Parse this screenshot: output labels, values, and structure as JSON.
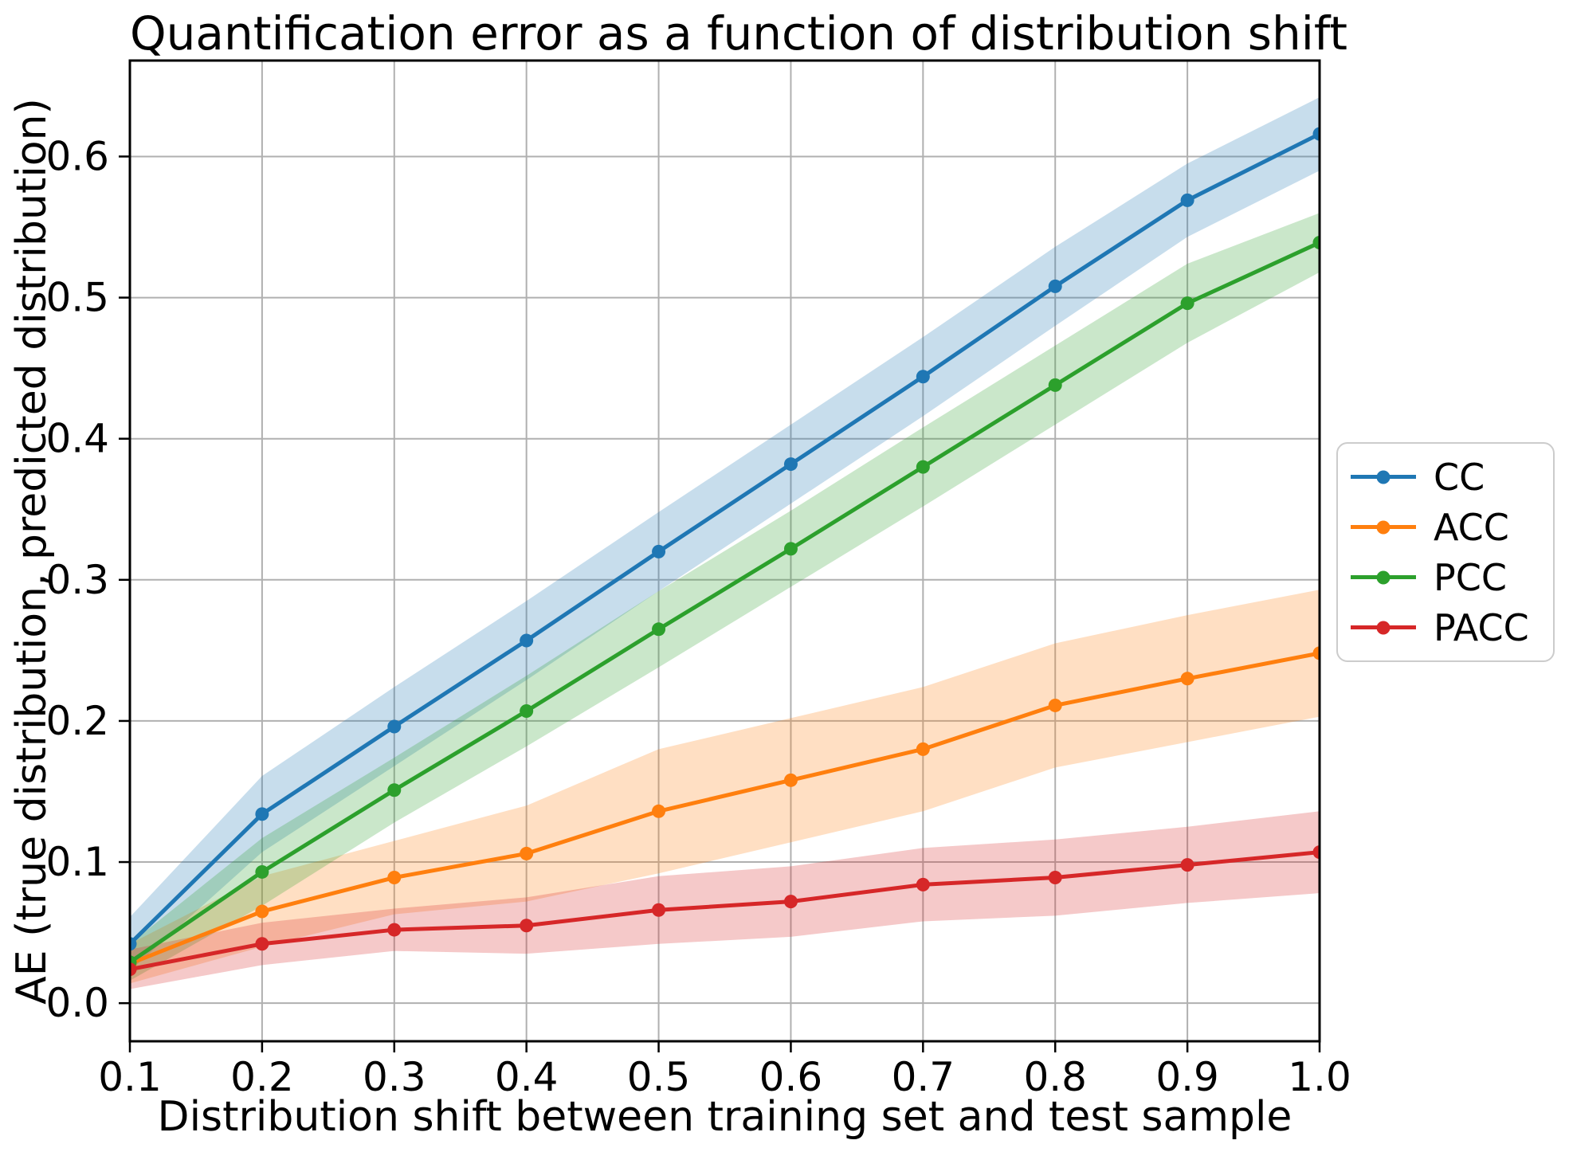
{
  "chart_data": {
    "type": "line",
    "title": "Quantification error as a function of distribution shift",
    "xlabel": "Distribution shift between training set and test sample",
    "ylabel": "AE (true distribution, predicted distribution)",
    "x": [
      0.1,
      0.2,
      0.3,
      0.4,
      0.5,
      0.6,
      0.7,
      0.8,
      0.9,
      1.0
    ],
    "xlim": [
      0.1,
      1.0
    ],
    "ylim": [
      -0.027,
      0.668
    ],
    "grid": true,
    "grid_color": "#b0b0b0",
    "xtick_labels": [
      "0.1",
      "0.2",
      "0.3",
      "0.4",
      "0.5",
      "0.6",
      "0.7",
      "0.8",
      "0.9",
      "1.0"
    ],
    "xtick_values": [
      0.1,
      0.2,
      0.3,
      0.4,
      0.5,
      0.6,
      0.7,
      0.8,
      0.9,
      1.0
    ],
    "ytick_labels": [
      "0.0",
      "0.1",
      "0.2",
      "0.3",
      "0.4",
      "0.5",
      "0.6"
    ],
    "ytick_values": [
      0.0,
      0.1,
      0.2,
      0.3,
      0.4,
      0.5,
      0.6
    ],
    "legend_position": "center-right-outside",
    "band_opacity": 0.25,
    "series": [
      {
        "name": "CC",
        "color": "#1f77b4",
        "values": [
          0.042,
          0.134,
          0.196,
          0.257,
          0.32,
          0.382,
          0.444,
          0.508,
          0.569,
          0.616
        ],
        "band_halfwidth": [
          0.019,
          0.027,
          0.028,
          0.028,
          0.028,
          0.028,
          0.028,
          0.028,
          0.026,
          0.026
        ]
      },
      {
        "name": "ACC",
        "color": "#ff7f0e",
        "values": [
          0.028,
          0.065,
          0.089,
          0.106,
          0.136,
          0.158,
          0.18,
          0.211,
          0.23,
          0.248
        ],
        "band_halfwidth": [
          0.014,
          0.025,
          0.026,
          0.034,
          0.044,
          0.044,
          0.044,
          0.044,
          0.045,
          0.045
        ]
      },
      {
        "name": "PCC",
        "color": "#2ca02c",
        "values": [
          0.029,
          0.093,
          0.151,
          0.207,
          0.265,
          0.322,
          0.38,
          0.438,
          0.496,
          0.539
        ],
        "band_halfwidth": [
          0.013,
          0.024,
          0.023,
          0.025,
          0.027,
          0.027,
          0.028,
          0.028,
          0.028,
          0.021
        ]
      },
      {
        "name": "PACC",
        "color": "#d62728",
        "values": [
          0.024,
          0.042,
          0.052,
          0.055,
          0.066,
          0.072,
          0.084,
          0.089,
          0.098,
          0.107
        ],
        "band_halfwidth": [
          0.014,
          0.015,
          0.015,
          0.02,
          0.024,
          0.025,
          0.026,
          0.027,
          0.027,
          0.029
        ]
      }
    ]
  }
}
